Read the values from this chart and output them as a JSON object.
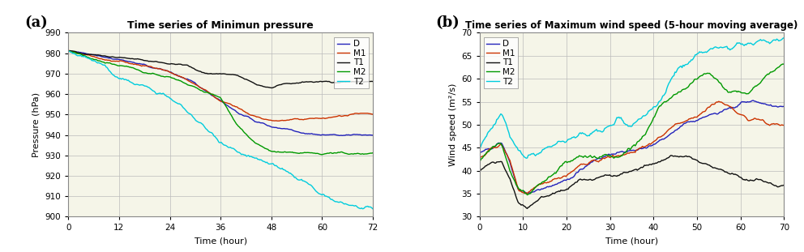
{
  "title_a": "Time series of Minimun pressure",
  "title_b": "Time series of Maximum wind speed (5-hour moving average)",
  "xlabel": "Time (hour)",
  "ylabel_a": "Pressure (hPa)",
  "ylabel_b": "Wind speed (m²/s)",
  "label_a": "(a)",
  "label_b": "(b)",
  "colors": {
    "D": "#2222bb",
    "M1": "#cc3300",
    "T1": "#111111",
    "M2": "#009900",
    "T2": "#00ccdd"
  },
  "xlim_a": [
    0,
    72
  ],
  "xlim_b": [
    0,
    70
  ],
  "ylim_a": [
    900,
    990
  ],
  "ylim_b": [
    30,
    70
  ],
  "xticks_a": [
    0,
    12,
    24,
    36,
    48,
    60,
    72
  ],
  "xticks_b": [
    0,
    10,
    20,
    30,
    40,
    50,
    60,
    70
  ],
  "yticks_a": [
    900,
    910,
    920,
    930,
    940,
    950,
    960,
    970,
    980,
    990
  ],
  "yticks_b": [
    30,
    35,
    40,
    45,
    50,
    55,
    60,
    65,
    70
  ],
  "bg_color": "#f5f5e8",
  "grid_color": "#bbbbbb",
  "fig_bg": "#ffffff"
}
